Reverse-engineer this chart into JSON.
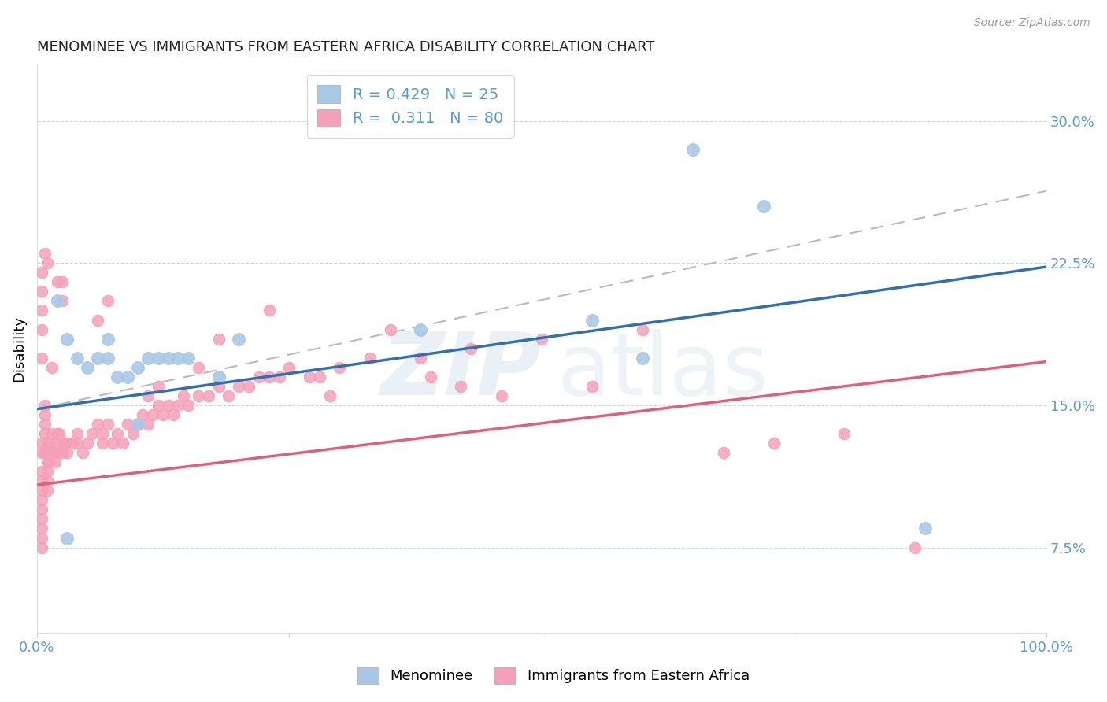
{
  "title": "MENOMINEE VS IMMIGRANTS FROM EASTERN AFRICA DISABILITY CORRELATION CHART",
  "source": "Source: ZipAtlas.com",
  "ylabel": "Disability",
  "xlim": [
    0.0,
    1.0
  ],
  "ylim": [
    0.03,
    0.33
  ],
  "yticks": [
    0.075,
    0.15,
    0.225,
    0.3
  ],
  "ytick_labels": [
    "7.5%",
    "15.0%",
    "22.5%",
    "30.0%"
  ],
  "xticks": [
    0.0,
    0.25,
    0.5,
    0.75,
    1.0
  ],
  "xtick_labels": [
    "0.0%",
    "",
    "",
    "",
    "100.0%"
  ],
  "menominee_R": 0.429,
  "menominee_N": 25,
  "immigrants_R": 0.311,
  "immigrants_N": 80,
  "blue_color": "#a8c8e8",
  "blue_line_color": "#3070b0",
  "pink_color": "#f4a0b8",
  "pink_line_color": "#e0607a",
  "gray_dash_color": "#c0b8b8",
  "legend_label_1": "Menominee",
  "legend_label_2": "Immigrants from Eastern Africa",
  "menominee_x": [
    0.02,
    0.03,
    0.04,
    0.05,
    0.06,
    0.07,
    0.07,
    0.08,
    0.09,
    0.1,
    0.11,
    0.12,
    0.13,
    0.14,
    0.15,
    0.18,
    0.2,
    0.38,
    0.55,
    0.6,
    0.65,
    0.72,
    0.88,
    0.03,
    0.1
  ],
  "menominee_y": [
    0.205,
    0.185,
    0.175,
    0.17,
    0.175,
    0.175,
    0.185,
    0.165,
    0.165,
    0.17,
    0.175,
    0.175,
    0.175,
    0.175,
    0.175,
    0.165,
    0.185,
    0.19,
    0.195,
    0.175,
    0.285,
    0.255,
    0.085,
    0.08,
    0.14
  ],
  "immigrants_x": [
    0.005,
    0.005,
    0.005,
    0.005,
    0.005,
    0.005,
    0.005,
    0.005,
    0.005,
    0.005,
    0.005,
    0.008,
    0.008,
    0.008,
    0.008,
    0.008,
    0.01,
    0.01,
    0.01,
    0.01,
    0.01,
    0.01,
    0.012,
    0.012,
    0.012,
    0.015,
    0.015,
    0.018,
    0.018,
    0.02,
    0.02,
    0.02,
    0.022,
    0.025,
    0.025,
    0.028,
    0.03,
    0.03,
    0.035,
    0.04,
    0.04,
    0.045,
    0.05,
    0.055,
    0.06,
    0.065,
    0.065,
    0.07,
    0.075,
    0.08,
    0.085,
    0.09,
    0.095,
    0.1,
    0.105,
    0.11,
    0.115,
    0.12,
    0.125,
    0.13,
    0.135,
    0.14,
    0.145,
    0.15,
    0.16,
    0.17,
    0.18,
    0.19,
    0.2,
    0.21,
    0.22,
    0.23,
    0.25,
    0.28,
    0.3,
    0.33,
    0.38,
    0.43,
    0.5,
    0.6
  ],
  "immigrants_y": [
    0.13,
    0.125,
    0.115,
    0.11,
    0.105,
    0.1,
    0.095,
    0.09,
    0.085,
    0.08,
    0.075,
    0.125,
    0.135,
    0.14,
    0.145,
    0.15,
    0.12,
    0.115,
    0.11,
    0.105,
    0.125,
    0.13,
    0.13,
    0.125,
    0.12,
    0.135,
    0.125,
    0.125,
    0.12,
    0.13,
    0.135,
    0.125,
    0.135,
    0.13,
    0.125,
    0.13,
    0.13,
    0.125,
    0.13,
    0.135,
    0.13,
    0.125,
    0.13,
    0.135,
    0.14,
    0.13,
    0.135,
    0.14,
    0.13,
    0.135,
    0.13,
    0.14,
    0.135,
    0.14,
    0.145,
    0.14,
    0.145,
    0.15,
    0.145,
    0.15,
    0.145,
    0.15,
    0.155,
    0.15,
    0.155,
    0.155,
    0.16,
    0.155,
    0.16,
    0.16,
    0.165,
    0.165,
    0.17,
    0.165,
    0.17,
    0.175,
    0.175,
    0.18,
    0.185,
    0.19
  ],
  "extra_pink_x": [
    0.005,
    0.005,
    0.005,
    0.005,
    0.005,
    0.008,
    0.01,
    0.015,
    0.02,
    0.025,
    0.025,
    0.06,
    0.07,
    0.11,
    0.12,
    0.16,
    0.18,
    0.23,
    0.24,
    0.27,
    0.29,
    0.35,
    0.39,
    0.42,
    0.46,
    0.55,
    0.68,
    0.73,
    0.8,
    0.87
  ],
  "extra_pink_y": [
    0.22,
    0.21,
    0.2,
    0.19,
    0.175,
    0.23,
    0.225,
    0.17,
    0.215,
    0.215,
    0.205,
    0.195,
    0.205,
    0.155,
    0.16,
    0.17,
    0.185,
    0.2,
    0.165,
    0.165,
    0.155,
    0.19,
    0.165,
    0.16,
    0.155,
    0.16,
    0.125,
    0.13,
    0.135,
    0.075
  ]
}
